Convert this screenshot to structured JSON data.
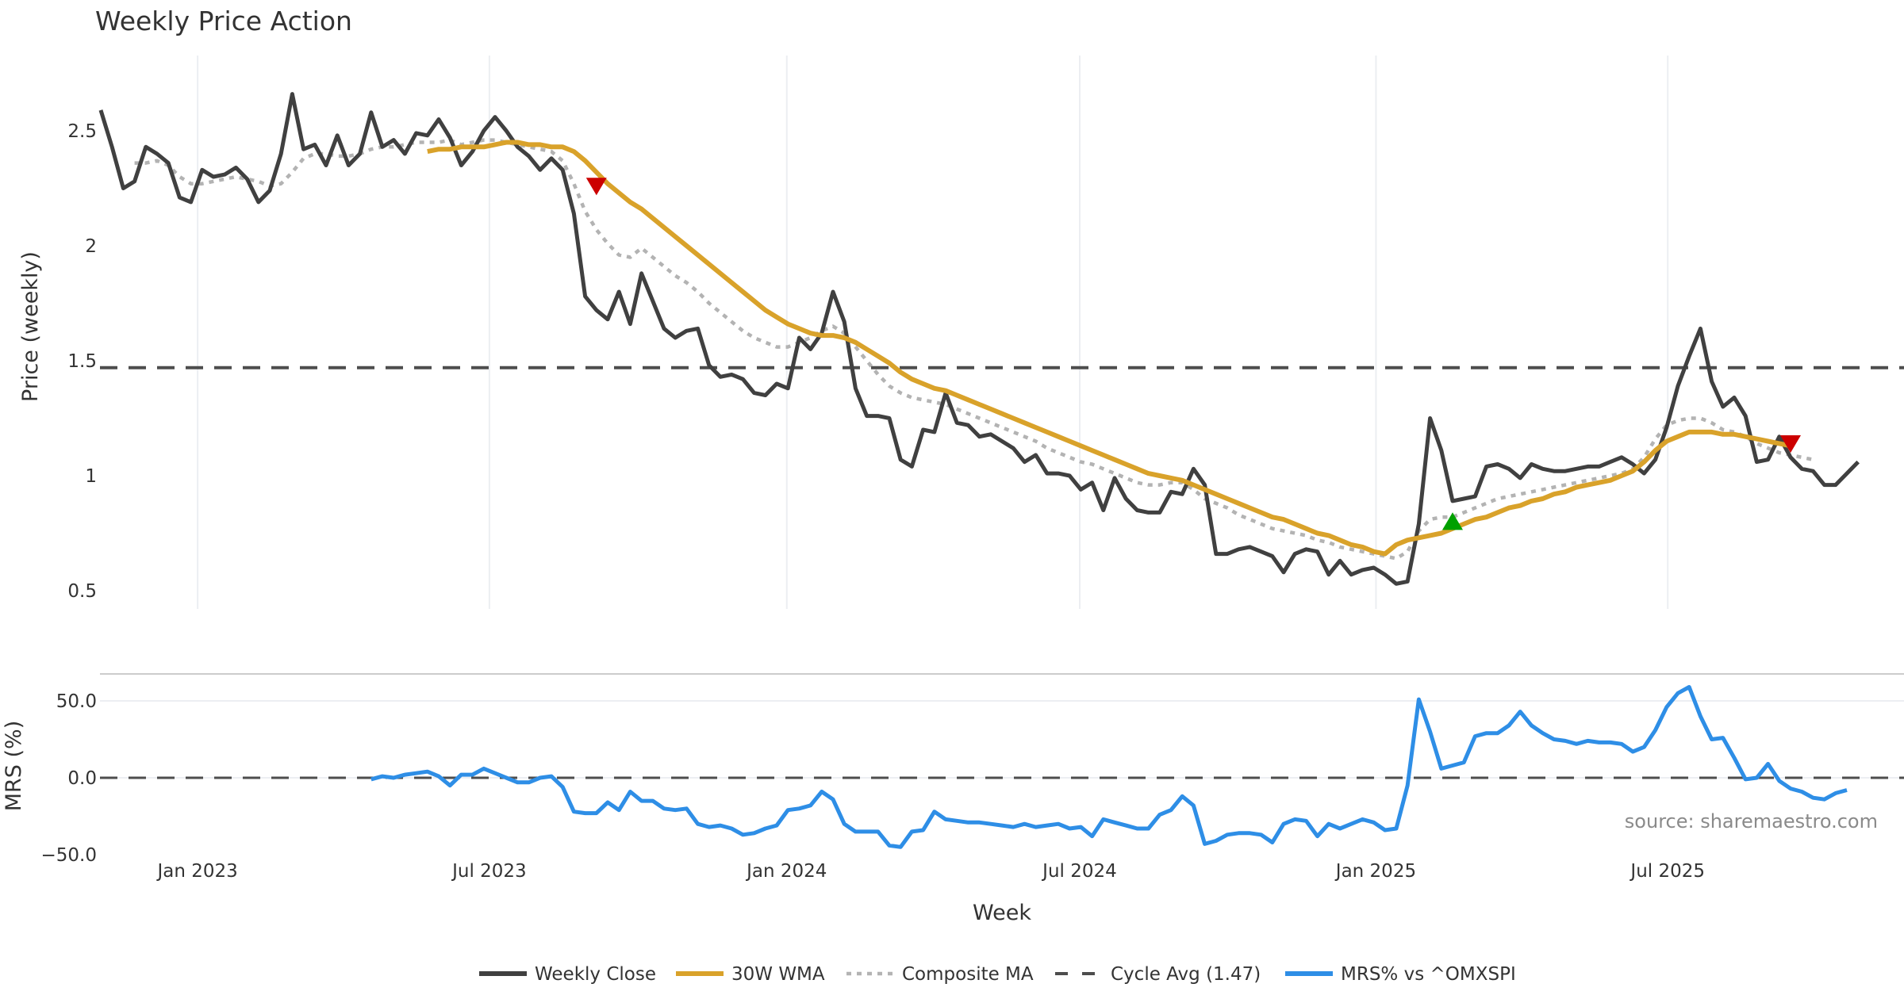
{
  "chart_data": [
    {
      "type": "line",
      "title": "Weekly Price Action",
      "xlabel": "Week",
      "ylabel": "Price (weekly)",
      "ylim": [
        0.42,
        2.74
      ],
      "yticks": [
        0.5,
        1,
        1.5,
        2,
        2.5
      ],
      "ytick_labels": [
        "0.5",
        "1",
        "1.5",
        "2",
        "2.5"
      ],
      "xticks": [
        {
          "week": 8.6,
          "label": "Jan 2023"
        },
        {
          "week": 34.5,
          "label": "Jul 2023"
        },
        {
          "week": 60.9,
          "label": "Jan 2024"
        },
        {
          "week": 86.9,
          "label": "Jul 2024"
        },
        {
          "week": 113.2,
          "label": "Jan 2025"
        },
        {
          "week": 139.1,
          "label": "Jul 2025"
        }
      ],
      "x_range_weeks": [
        0,
        160
      ],
      "grid": "vertical",
      "series": [
        {
          "name": "Weekly Close",
          "color": "#404040",
          "start_week": 0,
          "values": [
            2.59,
            2.43,
            2.25,
            2.28,
            2.43,
            2.4,
            2.36,
            2.21,
            2.19,
            2.33,
            2.3,
            2.31,
            2.34,
            2.29,
            2.19,
            2.24,
            2.4,
            2.66,
            2.42,
            2.44,
            2.35,
            2.48,
            2.35,
            2.4,
            2.58,
            2.43,
            2.46,
            2.4,
            2.49,
            2.48,
            2.55,
            2.47,
            2.35,
            2.41,
            2.5,
            2.56,
            2.5,
            2.43,
            2.39,
            2.33,
            2.38,
            2.33,
            2.14,
            1.78,
            1.72,
            1.68,
            1.8,
            1.66,
            1.88,
            1.76,
            1.64,
            1.6,
            1.63,
            1.64,
            1.48,
            1.43,
            1.44,
            1.42,
            1.36,
            1.35,
            1.4,
            1.38,
            1.6,
            1.55,
            1.62,
            1.8,
            1.67,
            1.38,
            1.26,
            1.26,
            1.25,
            1.07,
            1.04,
            1.2,
            1.19,
            1.36,
            1.23,
            1.22,
            1.17,
            1.18,
            1.15,
            1.12,
            1.06,
            1.09,
            1.01,
            1.01,
            1.0,
            0.94,
            0.97,
            0.85,
            0.99,
            0.9,
            0.85,
            0.84,
            0.84,
            0.93,
            0.92,
            1.03,
            0.96,
            0.66,
            0.66,
            0.68,
            0.69,
            0.67,
            0.65,
            0.58,
            0.66,
            0.68,
            0.67,
            0.57,
            0.63,
            0.57,
            0.59,
            0.6,
            0.57,
            0.53,
            0.54,
            0.79,
            1.25,
            1.11,
            0.89,
            0.9,
            0.91,
            1.04,
            1.05,
            1.03,
            0.99,
            1.05,
            1.03,
            1.02,
            1.02,
            1.03,
            1.04,
            1.04,
            1.06,
            1.08,
            1.05,
            1.01,
            1.07,
            1.21,
            1.39,
            1.52,
            1.64,
            1.41,
            1.3,
            1.34,
            1.26,
            1.06,
            1.07,
            1.17,
            1.08,
            1.03,
            1.02,
            0.96,
            0.96,
            1.01,
            1.06
          ]
        },
        {
          "name": "30W WMA",
          "color": "#d9a22a",
          "start_week": 29,
          "values": [
            2.41,
            2.42,
            2.42,
            2.43,
            2.43,
            2.43,
            2.44,
            2.45,
            2.45,
            2.44,
            2.44,
            2.43,
            2.43,
            2.41,
            2.37,
            2.32,
            2.27,
            2.23,
            2.19,
            2.16,
            2.12,
            2.08,
            2.04,
            2.0,
            1.96,
            1.92,
            1.88,
            1.84,
            1.8,
            1.76,
            1.72,
            1.69,
            1.66,
            1.64,
            1.62,
            1.61,
            1.61,
            1.6,
            1.58,
            1.55,
            1.52,
            1.49,
            1.45,
            1.42,
            1.4,
            1.38,
            1.37,
            1.35,
            1.33,
            1.31,
            1.29,
            1.27,
            1.25,
            1.23,
            1.21,
            1.19,
            1.17,
            1.15,
            1.13,
            1.11,
            1.09,
            1.07,
            1.05,
            1.03,
            1.01,
            1.0,
            0.99,
            0.98,
            0.96,
            0.94,
            0.92,
            0.9,
            0.88,
            0.86,
            0.84,
            0.82,
            0.81,
            0.79,
            0.77,
            0.75,
            0.74,
            0.72,
            0.7,
            0.69,
            0.67,
            0.66,
            0.7,
            0.72,
            0.73,
            0.74,
            0.75,
            0.77,
            0.79,
            0.81,
            0.82,
            0.84,
            0.86,
            0.87,
            0.89,
            0.9,
            0.92,
            0.93,
            0.95,
            0.96,
            0.97,
            0.98,
            1.0,
            1.02,
            1.06,
            1.11,
            1.15,
            1.17,
            1.19,
            1.19,
            1.19,
            1.18,
            1.18,
            1.17,
            1.16,
            1.15,
            1.14,
            1.13
          ]
        },
        {
          "name": "Composite MA",
          "color": "#b3b3b3",
          "start_week": 3,
          "values": [
            2.36,
            2.36,
            2.37,
            2.35,
            2.3,
            2.27,
            2.27,
            2.28,
            2.29,
            2.3,
            2.29,
            2.28,
            2.26,
            2.27,
            2.32,
            2.38,
            2.4,
            2.4,
            2.39,
            2.39,
            2.4,
            2.42,
            2.43,
            2.43,
            2.44,
            2.45,
            2.45,
            2.45,
            2.46,
            2.44,
            2.45,
            2.46,
            2.46,
            2.45,
            2.44,
            2.43,
            2.42,
            2.41,
            2.37,
            2.27,
            2.15,
            2.07,
            2.01,
            1.96,
            1.95,
            1.99,
            1.95,
            1.91,
            1.87,
            1.84,
            1.8,
            1.75,
            1.71,
            1.67,
            1.63,
            1.6,
            1.58,
            1.56,
            1.56,
            1.58,
            1.6,
            1.63,
            1.65,
            1.62,
            1.56,
            1.5,
            1.44,
            1.39,
            1.36,
            1.34,
            1.33,
            1.32,
            1.31,
            1.29,
            1.27,
            1.25,
            1.23,
            1.21,
            1.19,
            1.17,
            1.15,
            1.12,
            1.1,
            1.08,
            1.06,
            1.05,
            1.03,
            1.01,
            0.99,
            0.97,
            0.96,
            0.96,
            0.97,
            0.97,
            0.94,
            0.9,
            0.88,
            0.86,
            0.83,
            0.81,
            0.79,
            0.77,
            0.76,
            0.75,
            0.74,
            0.72,
            0.71,
            0.69,
            0.68,
            0.67,
            0.66,
            0.65,
            0.64,
            0.67,
            0.76,
            0.81,
            0.82,
            0.82,
            0.84,
            0.86,
            0.88,
            0.9,
            0.91,
            0.92,
            0.93,
            0.94,
            0.95,
            0.96,
            0.97,
            0.98,
            0.99,
            1.0,
            1.01,
            1.03,
            1.08,
            1.16,
            1.22,
            1.24,
            1.25,
            1.25,
            1.23,
            1.2,
            1.19,
            1.17,
            1.14,
            1.12,
            1.1,
            1.09,
            1.08,
            1.07
          ]
        },
        {
          "name": "Cycle Avg (1.47)",
          "color": "#4d4d4d",
          "type": "hline",
          "value": 1.47
        }
      ],
      "markers": [
        {
          "type": "sell",
          "shape": "triangle-down",
          "color": "#cc0000",
          "week": 44,
          "value": 2.26
        },
        {
          "type": "buy",
          "shape": "triangle-up",
          "color": "#00a000",
          "week": 120,
          "value": 0.8
        },
        {
          "type": "sell",
          "shape": "triangle-down",
          "color": "#cc0000",
          "week": 150,
          "value": 1.14
        }
      ]
    },
    {
      "type": "line",
      "xlabel": "Week",
      "ylabel": "MRS (%)",
      "ylim": [
        -60,
        68
      ],
      "yticks": [
        -50,
        0,
        50
      ],
      "ytick_labels": [
        "−50.0",
        "0.0",
        "50.0"
      ],
      "series": [
        {
          "name": "MRS% vs ^OMXSPI",
          "color": "#2e8ee6",
          "start_week": 24,
          "values": [
            -1,
            1,
            0,
            2,
            3,
            4,
            1,
            -5,
            2,
            2,
            6,
            3,
            0,
            -3,
            -3,
            0,
            1,
            -6,
            -22,
            -23,
            -23,
            -16,
            -21,
            -9,
            -15,
            -15,
            -20,
            -21,
            -20,
            -30,
            -32,
            -31,
            -33,
            -37,
            -36,
            -33,
            -31,
            -21,
            -20,
            -18,
            -9,
            -14,
            -30,
            -35,
            -35,
            -35,
            -44,
            -45,
            -35,
            -34,
            -22,
            -27,
            -28,
            -29,
            -29,
            -30,
            -31,
            -32,
            -30,
            -32,
            -31,
            -30,
            -33,
            -32,
            -38,
            -27,
            -29,
            -31,
            -33,
            -33,
            -24,
            -21,
            -12,
            -18,
            -43,
            -41,
            -37,
            -36,
            -36,
            -37,
            -42,
            -30,
            -27,
            -28,
            -38,
            -30,
            -33,
            -30,
            -27,
            -29,
            -34,
            -33,
            -5,
            51,
            30,
            6,
            8,
            10,
            27,
            29,
            29,
            34,
            43,
            34,
            29,
            25,
            24,
            22,
            24,
            23,
            23,
            22,
            17,
            20,
            31,
            46,
            55,
            59,
            40,
            25,
            26,
            13,
            -1,
            0,
            9,
            -2,
            -7,
            -9,
            -13,
            -14,
            -10,
            -8
          ]
        },
        {
          "name": "zero-line",
          "type": "hline",
          "value": 0,
          "color": "#4d4d4d"
        }
      ]
    }
  ],
  "legend": {
    "placement": "bottom-center",
    "items": [
      {
        "label": "Weekly Close",
        "color": "#404040",
        "style": "solid"
      },
      {
        "label": "30W WMA",
        "color": "#d9a22a",
        "style": "solid"
      },
      {
        "label": "Composite MA",
        "color": "#b3b3b3",
        "style": "dotted"
      },
      {
        "label": "Cycle Avg (1.47)",
        "color": "#4d4d4d",
        "style": "dashed"
      },
      {
        "label": "MRS% vs ^OMXSPI",
        "color": "#2e8ee6",
        "style": "solid"
      }
    ]
  },
  "source": "source: sharemaestro.com"
}
